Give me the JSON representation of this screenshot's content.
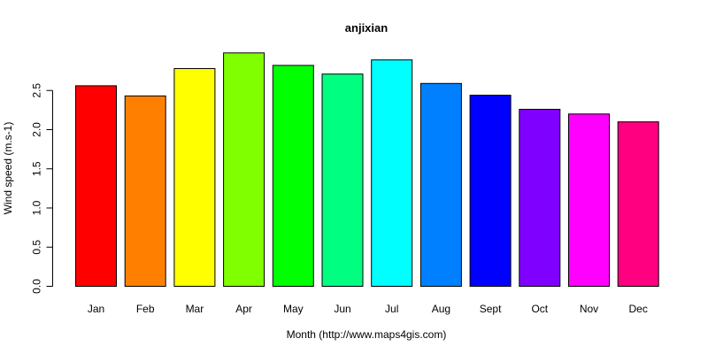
{
  "chart_data": {
    "type": "bar",
    "title": "anjixian",
    "xlabel": "Month (http://www.maps4gis.com)",
    "ylabel": "Wind speed (m.s-1)",
    "categories": [
      "Jan",
      "Feb",
      "Mar",
      "Apr",
      "May",
      "Jun",
      "Jul",
      "Aug",
      "Sept",
      "Oct",
      "Nov",
      "Dec"
    ],
    "values": [
      2.56,
      2.43,
      2.78,
      2.98,
      2.82,
      2.71,
      2.89,
      2.59,
      2.44,
      2.26,
      2.2,
      2.1
    ],
    "colors": [
      "#FF0000",
      "#FF8000",
      "#FFFF00",
      "#80FF00",
      "#00FF00",
      "#00FF80",
      "#00FFFF",
      "#0080FF",
      "#0000FF",
      "#8000FF",
      "#FF00FF",
      "#FF0080"
    ],
    "yticks": [
      0.0,
      0.5,
      1.0,
      1.5,
      2.0,
      2.5
    ],
    "ytick_labels": [
      "0.0",
      "0.5",
      "1.0",
      "1.5",
      "2.0",
      "2.5"
    ],
    "ylim": [
      0,
      3.05
    ],
    "grid": false,
    "legend": "none"
  }
}
